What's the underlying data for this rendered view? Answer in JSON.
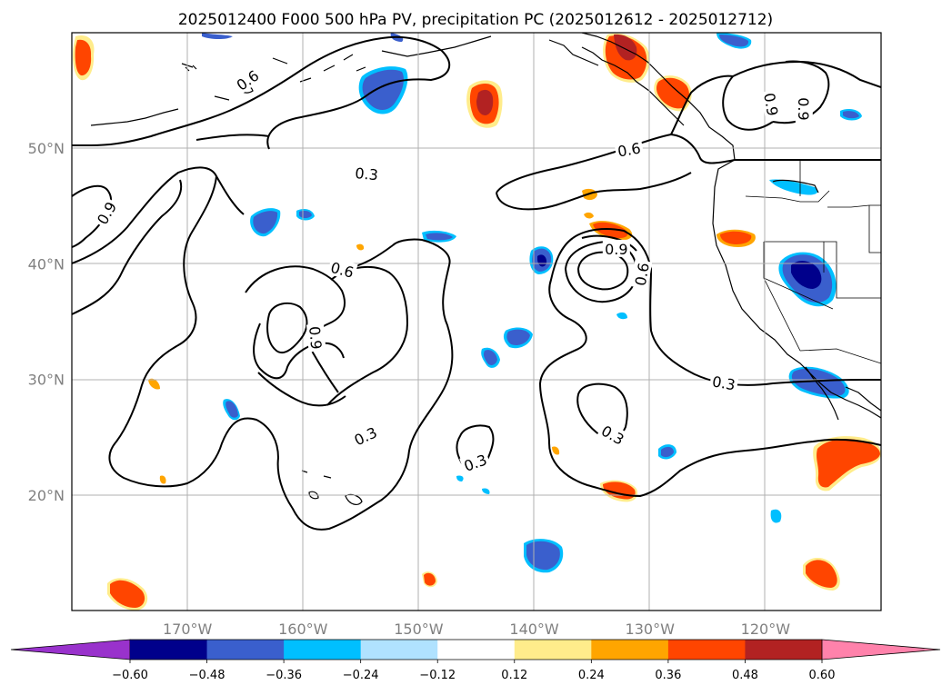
{
  "title": "2025012400 F000 500 hPa PV, precipitation PC (2025012612 - 2025012712)",
  "map": {
    "lat_labels": [
      {
        "lat": 50,
        "text": "50°N"
      },
      {
        "lat": 40,
        "text": "40°N"
      },
      {
        "lat": 30,
        "text": "30°N"
      },
      {
        "lat": 20,
        "text": "20°N"
      }
    ],
    "lon_labels": [
      {
        "lon": -170,
        "text": "170°W"
      },
      {
        "lon": -160,
        "text": "160°W"
      },
      {
        "lon": -150,
        "text": "150°W"
      },
      {
        "lon": -140,
        "text": "140°W"
      },
      {
        "lon": -130,
        "text": "130°W"
      },
      {
        "lon": -120,
        "text": "120°W"
      }
    ],
    "contour_labels": [
      {
        "text": "0.6",
        "lon": -164.8,
        "lat": 55.9,
        "rot": -35
      },
      {
        "text": "0.3",
        "lon": -154.5,
        "lat": 47.8,
        "rot": 5
      },
      {
        "text": "0.6",
        "lon": -131.8,
        "lat": 49.9,
        "rot": -10
      },
      {
        "text": "0.9",
        "lon": -116.7,
        "lat": 53.4,
        "rot": 90
      },
      {
        "text": "0.9",
        "lon": -119.5,
        "lat": 53.8,
        "rot": 80
      },
      {
        "text": "0.9",
        "lon": -177.0,
        "lat": 44.4,
        "rot": -60
      },
      {
        "text": "0.9",
        "lon": -132.9,
        "lat": 41.3,
        "rot": 0
      },
      {
        "text": "0.6",
        "lon": -130.7,
        "lat": 39.1,
        "rot": -80
      },
      {
        "text": "0.6",
        "lon": -156.6,
        "lat": 39.5,
        "rot": 15
      },
      {
        "text": "0.9",
        "lon": -158.9,
        "lat": 33.6,
        "rot": 85
      },
      {
        "text": "0.3",
        "lon": -123.6,
        "lat": 29.7,
        "rot": 10
      },
      {
        "text": "0.3",
        "lon": -133.2,
        "lat": 25.2,
        "rot": 30
      },
      {
        "text": "0.3",
        "lon": -154.6,
        "lat": 25.1,
        "rot": -25
      },
      {
        "text": "0.3",
        "lon": -145.1,
        "lat": 22.8,
        "rot": -20
      }
    ]
  },
  "colorbar": {
    "ticks": [
      "−0.60",
      "−0.48",
      "−0.36",
      "−0.24",
      "−0.12",
      "0.12",
      "0.24",
      "0.36",
      "0.48",
      "0.60"
    ],
    "colors": [
      "#9932CC",
      "#00008B",
      "#3A5FCD",
      "#00BFFF",
      "#B0E2FF",
      "#FFFFFF",
      "#FFEC8B",
      "#FFA500",
      "#FF4500",
      "#B22222",
      "#FF82AB"
    ]
  },
  "colors": {
    "grid": "#b0b0b0",
    "coast": "#000000",
    "contour": "#000000"
  }
}
